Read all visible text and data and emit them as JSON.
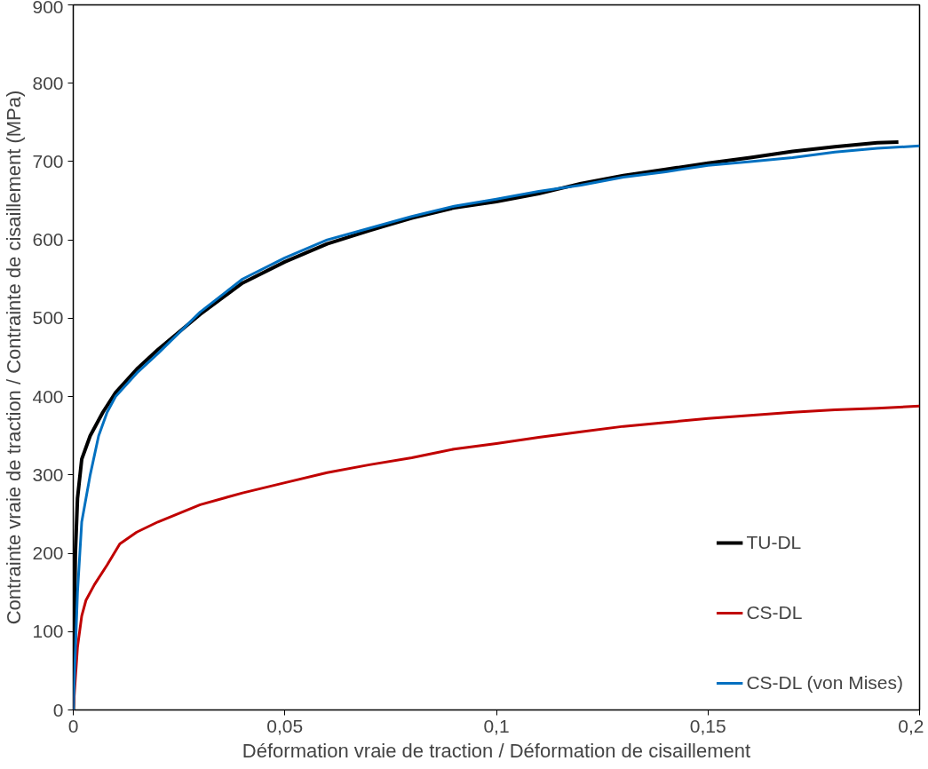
{
  "chart_data": {
    "type": "line",
    "xlabel": "Déformation vraie de traction / Déformation de cisaillement",
    "ylabel": "Contrainte vraie de traction / Contrainte de cisaillement (MPa)",
    "xlim": [
      0,
      0.2
    ],
    "xticks": [
      0,
      {
        "value": 0.05,
        "label": "0,05"
      },
      {
        "value": 0.1,
        "label": "0,1"
      },
      {
        "value": 0.15,
        "label": "0,15"
      },
      {
        "value": 0.2,
        "label": "0,2"
      }
    ],
    "ylim": [
      0,
      900
    ],
    "yticks": [
      0,
      100,
      200,
      300,
      400,
      500,
      600,
      700,
      800,
      900
    ],
    "grid": false,
    "legend": "bottom right",
    "marker": "none",
    "line_style": "solid",
    "series": [
      {
        "name": "TU-DL",
        "color": "#000000",
        "x": [
          0,
          0.0005,
          0.001,
          0.002,
          0.004,
          0.007,
          0.01,
          0.015,
          0.02,
          0.03,
          0.04,
          0.05,
          0.06,
          0.07,
          0.08,
          0.09,
          0.1,
          0.11,
          0.12,
          0.13,
          0.14,
          0.15,
          0.16,
          0.17,
          0.18,
          0.19,
          0.195
        ],
        "values": [
          0,
          200,
          270,
          320,
          350,
          380,
          405,
          435,
          460,
          505,
          545,
          572,
          595,
          612,
          628,
          641,
          649,
          659,
          672,
          682,
          690,
          698,
          705,
          713,
          719,
          724,
          725
        ]
      },
      {
        "name": "CS-DL",
        "color": "#c00000",
        "x": [
          0,
          0.001,
          0.002,
          0.003,
          0.005,
          0.008,
          0.011,
          0.015,
          0.02,
          0.03,
          0.04,
          0.05,
          0.06,
          0.07,
          0.08,
          0.09,
          0.1,
          0.11,
          0.12,
          0.13,
          0.14,
          0.15,
          0.16,
          0.17,
          0.18,
          0.19,
          0.2
        ],
        "values": [
          0,
          80,
          120,
          140,
          160,
          185,
          212,
          227,
          240,
          262,
          277,
          290,
          303,
          313,
          322,
          333,
          340,
          348,
          355,
          362,
          367,
          372,
          376,
          380,
          383,
          385,
          388
        ]
      },
      {
        "name": "CS-DL (von Mises)",
        "color": "#0070c0",
        "x": [
          0,
          0.001,
          0.002,
          0.004,
          0.006,
          0.008,
          0.01,
          0.015,
          0.02,
          0.03,
          0.04,
          0.05,
          0.06,
          0.07,
          0.08,
          0.09,
          0.1,
          0.11,
          0.12,
          0.13,
          0.14,
          0.15,
          0.16,
          0.17,
          0.18,
          0.19,
          0.2
        ],
        "values": [
          0,
          150,
          240,
          300,
          350,
          380,
          400,
          430,
          455,
          508,
          550,
          577,
          600,
          615,
          630,
          643,
          652,
          662,
          670,
          680,
          687,
          695,
          700,
          705,
          712,
          717,
          720
        ]
      }
    ]
  }
}
